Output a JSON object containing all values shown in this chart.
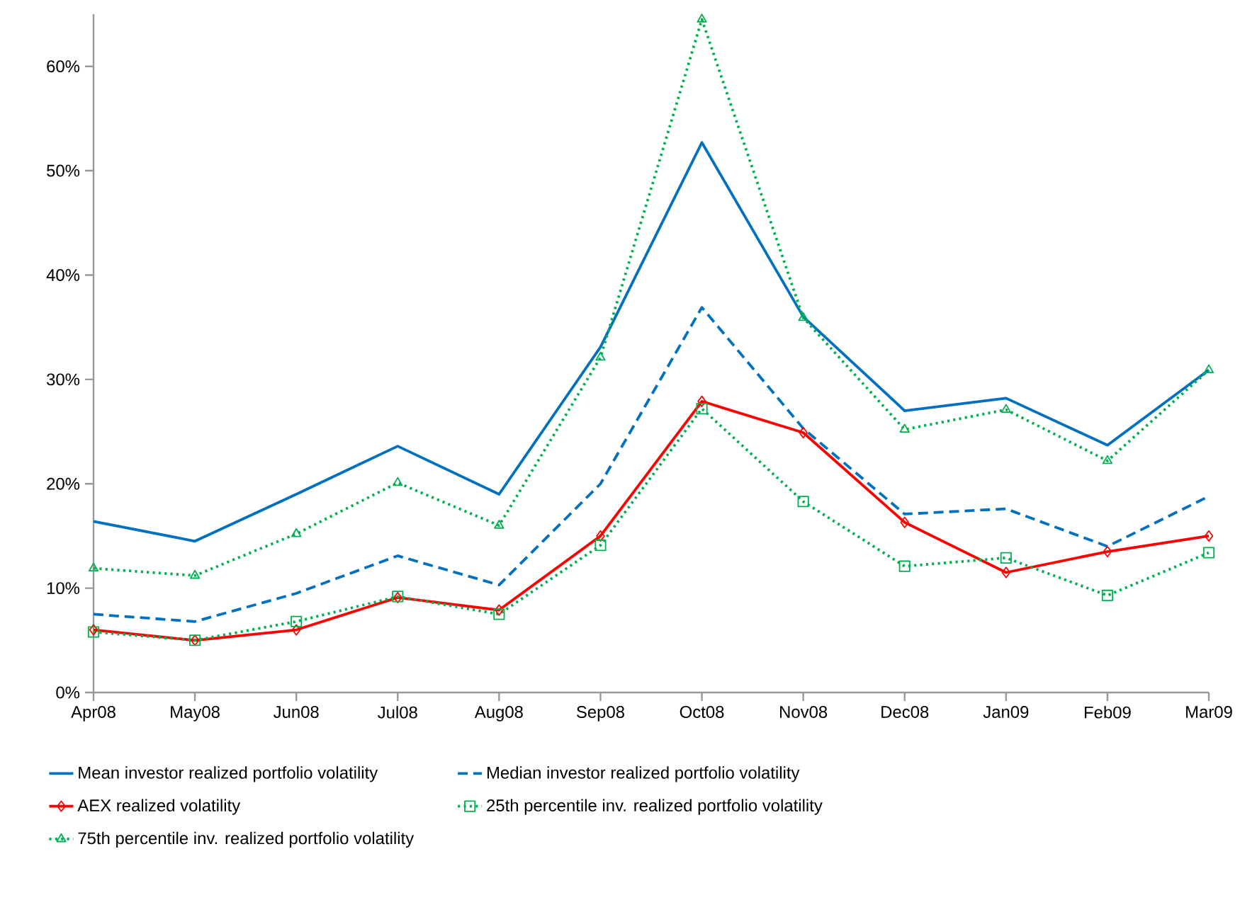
{
  "chart_data": {
    "type": "line",
    "categories": [
      "Apr08",
      "May08",
      "Jun08",
      "Jul08",
      "Aug08",
      "Sep08",
      "Oct08",
      "Nov08",
      "Dec08",
      "Jan09",
      "Feb09",
      "Mar09"
    ],
    "series": [
      {
        "name": "Mean investor realized portfolio volatility",
        "color": "#0070c0",
        "marker": "none",
        "line_style": "solid",
        "values": [
          16.4,
          14.5,
          19.0,
          23.6,
          19.0,
          33.1,
          52.7,
          36.0,
          27.0,
          28.2,
          23.7,
          30.9
        ]
      },
      {
        "name": "Median investor realized portfolio volatility",
        "color": "#0070c0",
        "marker": "none",
        "line_style": "dashed",
        "values": [
          7.5,
          6.8,
          9.5,
          13.1,
          10.3,
          20.0,
          36.9,
          25.3,
          17.1,
          17.6,
          14.0,
          18.8
        ]
      },
      {
        "name": "AEX realized volatility",
        "color": "#ff0000",
        "marker": "diamond",
        "line_style": "solid",
        "values": [
          6.0,
          5.0,
          6.0,
          9.1,
          7.9,
          15.0,
          27.9,
          24.9,
          16.3,
          11.5,
          13.5,
          15.0
        ]
      },
      {
        "name": "25th percentile inv. realized portfolio volatility",
        "color": "#00b050",
        "marker": "square",
        "line_style": "dotted",
        "values": [
          5.8,
          5.0,
          6.8,
          9.2,
          7.5,
          14.1,
          27.2,
          18.3,
          12.1,
          12.9,
          9.3,
          13.4
        ]
      },
      {
        "name": "75th percentile inv. realized portfolio volatility",
        "color": "#00b050",
        "marker": "triangle",
        "line_style": "dotted",
        "values": [
          11.9,
          11.2,
          15.2,
          20.1,
          16.0,
          32.1,
          64.5,
          35.9,
          25.2,
          27.1,
          22.2,
          30.9
        ]
      }
    ],
    "ylim": [
      0,
      65
    ],
    "yticks": [
      {
        "value": 0,
        "label": "0%"
      },
      {
        "value": 10,
        "label": "10%"
      },
      {
        "value": 20,
        "label": "20%"
      },
      {
        "value": 30,
        "label": "30%"
      },
      {
        "value": 40,
        "label": "40%"
      },
      {
        "value": 50,
        "label": "50%"
      },
      {
        "value": 60,
        "label": "60%"
      }
    ],
    "grid": false,
    "legend": "bottom"
  }
}
